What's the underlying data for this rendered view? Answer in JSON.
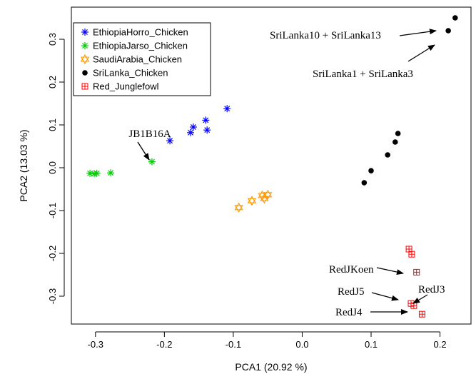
{
  "chart_data": {
    "type": "scatter",
    "title": "",
    "xlabel": "PCA1 (20.92 %)",
    "ylabel": "PCA2 (13.03 %)",
    "xlim": [
      -0.335,
      0.245
    ],
    "ylim": [
      -0.365,
      0.375
    ],
    "xticks": [
      -0.3,
      -0.2,
      -0.1,
      0.0,
      0.1,
      0.2
    ],
    "xtick_labels": [
      "-0.3",
      "-0.2",
      "-0.1",
      "0.0",
      "0.1",
      "0.2"
    ],
    "yticks": [
      -0.3,
      -0.2,
      -0.1,
      0.0,
      0.1,
      0.2,
      0.3
    ],
    "ytick_labels": [
      "-0.3",
      "-0.2",
      "-0.1",
      "0.0",
      "0.1",
      "0.2",
      "0.3"
    ],
    "grid": false,
    "legend_position": "top-left",
    "series": [
      {
        "name": "EthiopiaHorro_Chicken",
        "color": "#0000ff",
        "marker": "asterisk",
        "points": [
          [
            -0.192,
            0.063
          ],
          [
            -0.162,
            0.082
          ],
          [
            -0.158,
            0.095
          ],
          [
            -0.14,
            0.111
          ],
          [
            -0.138,
            0.088
          ],
          [
            -0.109,
            0.138
          ]
        ]
      },
      {
        "name": "EthiopiaJarso_Chicken",
        "color": "#00cc00",
        "marker": "asterisk",
        "points": [
          [
            -0.308,
            -0.013
          ],
          [
            -0.302,
            -0.014
          ],
          [
            -0.298,
            -0.013
          ],
          [
            -0.278,
            -0.012
          ],
          [
            -0.218,
            0.014
          ]
        ]
      },
      {
        "name": "SaudiArabia_Chicken",
        "color": "#ff9900",
        "marker": "star-of-david",
        "points": [
          [
            -0.092,
            -0.093
          ],
          [
            -0.073,
            -0.077
          ],
          [
            -0.058,
            -0.065
          ],
          [
            -0.055,
            -0.072
          ],
          [
            -0.05,
            -0.063
          ]
        ]
      },
      {
        "name": "SriLanka_Chicken",
        "color": "#000000",
        "marker": "filled-circle",
        "points": [
          [
            0.09,
            -0.035
          ],
          [
            0.1,
            -0.007
          ],
          [
            0.124,
            0.03
          ],
          [
            0.135,
            0.06
          ],
          [
            0.139,
            0.08
          ],
          [
            0.212,
            0.32
          ],
          [
            0.222,
            0.35
          ]
        ]
      },
      {
        "name": "Red_Junglefowl",
        "color": "#ff0000",
        "marker": "boxplus",
        "points": [
          [
            0.155,
            -0.19
          ],
          [
            0.159,
            -0.202
          ],
          [
            0.166,
            -0.244
          ],
          [
            0.158,
            -0.317
          ],
          [
            0.162,
            -0.322
          ],
          [
            0.174,
            -0.342
          ]
        ]
      }
    ],
    "annotations": [
      {
        "text": "SriLanka10 + SriLanka13",
        "target": [
          0.222,
          0.35
        ]
      },
      {
        "text": "SriLanka1 + SriLanka3",
        "target": [
          0.212,
          0.32
        ]
      },
      {
        "text": "JB1B16A",
        "target": [
          -0.218,
          0.014
        ]
      },
      {
        "text": "RedJKoen",
        "target": [
          0.166,
          -0.244
        ]
      },
      {
        "text": "RedJ5",
        "target": [
          0.158,
          -0.317
        ]
      },
      {
        "text": "RedJ3",
        "target": [
          0.162,
          -0.322
        ]
      },
      {
        "text": "RedJ4",
        "target": [
          0.174,
          -0.342
        ]
      }
    ]
  }
}
